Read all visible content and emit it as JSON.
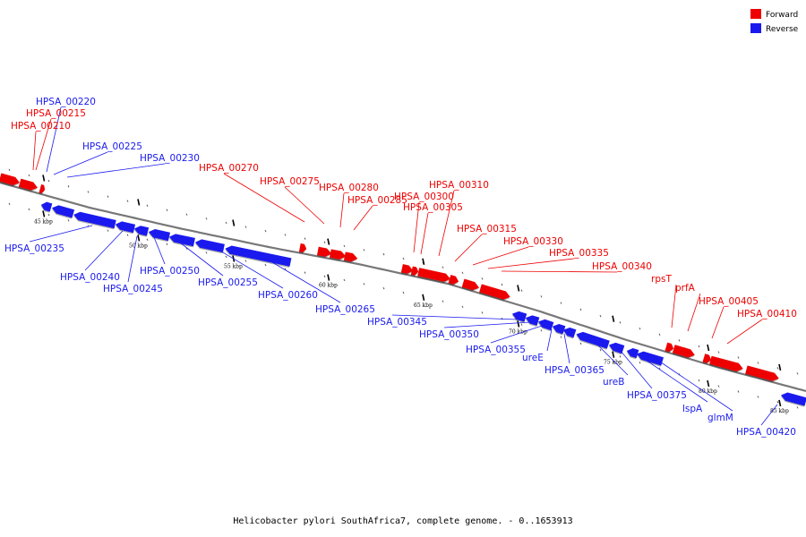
{
  "caption": "Helicobacter pylori SouthAfrica7, complete genome. - 0..1653913",
  "colors": {
    "forward": "#ee0000",
    "reverse": "#1a1aee",
    "backbone": "#777777"
  },
  "legend": [
    {
      "label": "Forward",
      "color": "#ee0000"
    },
    {
      "label": "Reverse",
      "color": "#1a1aee"
    }
  ],
  "ticks": [
    "45 kbp",
    "50 kbp",
    "55 kbp",
    "60 kbp",
    "65 kbp",
    "70 kbp",
    "75 kbp",
    "80 kbp",
    "85 kbp"
  ],
  "genes": {
    "forward": [
      "HPSA_00210",
      "HPSA_00215",
      "HPSA_00270",
      "HPSA_00275",
      "HPSA_00280",
      "HPSA_00285",
      "HPSA_00300",
      "HPSA_00305",
      "HPSA_00310",
      "HPSA_00315",
      "HPSA_00330",
      "HPSA_00335",
      "HPSA_00340",
      "rpsT",
      "prfA",
      "HPSA_00405",
      "HPSA_00410"
    ],
    "reverse": [
      "HPSA_00220",
      "HPSA_00225",
      "HPSA_00230",
      "HPSA_00235",
      "HPSA_00240",
      "HPSA_00245",
      "HPSA_00250",
      "HPSA_00255",
      "HPSA_00260",
      "HPSA_00265",
      "HPSA_00345",
      "HPSA_00350",
      "HPSA_00355",
      "ureE",
      "HPSA_00365",
      "ureB",
      "HPSA_00375",
      "lspA",
      "glmM",
      "HPSA_00420"
    ]
  }
}
